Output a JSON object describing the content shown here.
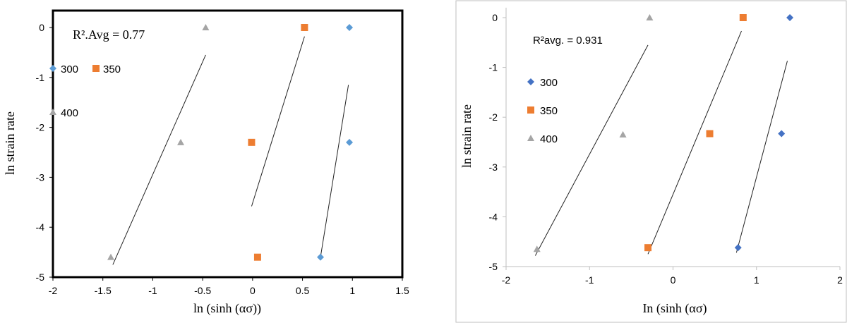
{
  "chart_data": [
    {
      "type": "scatter",
      "xlabel": "ln (sinh (ασ))",
      "ylabel": "ln strain rate",
      "xlim": [
        -2,
        1.5
      ],
      "ylim": [
        -5,
        0.5
      ],
      "xticks": [
        -2,
        -1.5,
        -1,
        -0.5,
        0,
        0.5,
        1,
        1.5
      ],
      "yticks": [
        0,
        -1,
        -2,
        -3,
        -4,
        -5
      ],
      "xtick_labels": [
        "-2",
        "-1.5",
        "-1",
        "-0.5",
        "0",
        "0.5",
        "1",
        "1.5"
      ],
      "ytick_labels": [
        "0",
        "-1",
        "-2",
        "-3",
        "-4",
        "-5"
      ],
      "annotation": "R².Avg = 0.77",
      "grid": false,
      "legend_placement": "left inside",
      "series": [
        {
          "name": "300",
          "marker": "diamond",
          "color": "#5b9bd5",
          "x": [
            0.97,
            0.97,
            0.68
          ],
          "y": [
            0,
            -2.3,
            -4.6
          ],
          "fit": {
            "x": [
              0.68,
              0.96
            ],
            "y": [
              -4.6,
              -1.15
            ]
          }
        },
        {
          "name": "350",
          "marker": "square",
          "color": "#ed7d31",
          "x": [
            0.52,
            -0.01,
            0.05
          ],
          "y": [
            0,
            -2.3,
            -4.6
          ],
          "fit": {
            "x": [
              -0.01,
              0.52
            ],
            "y": [
              -3.58,
              -0.18
            ]
          }
        },
        {
          "name": "400",
          "marker": "triangle",
          "color": "#a5a5a5",
          "x": [
            -0.47,
            -0.72,
            -1.42
          ],
          "y": [
            0,
            -2.3,
            -4.6
          ],
          "fit": {
            "x": [
              -1.4,
              -0.47
            ],
            "y": [
              -4.75,
              -0.55
            ]
          }
        }
      ]
    },
    {
      "type": "scatter",
      "xlabel": "In (sinh (ασ)",
      "ylabel": "ln strain rate",
      "xlim": [
        -2,
        2
      ],
      "ylim": [
        -5,
        0.2
      ],
      "xticks": [
        -2,
        -1,
        0,
        1,
        2
      ],
      "yticks": [
        0,
        -1,
        -2,
        -3,
        -4,
        -5
      ],
      "xtick_labels": [
        "-2",
        "-1",
        "0",
        "1",
        "2"
      ],
      "ytick_labels": [
        "0",
        "-1",
        "-2",
        "-3",
        "-4",
        "-5"
      ],
      "annotation": "R²avg. = 0.931",
      "grid": false,
      "legend_placement": "left inside",
      "series": [
        {
          "name": "300",
          "marker": "diamond",
          "color": "#4472c4",
          "x": [
            1.4,
            1.3,
            0.78
          ],
          "y": [
            0,
            -2.33,
            -4.62
          ],
          "fit": {
            "x": [
              0.76,
              1.37
            ],
            "y": [
              -4.72,
              -0.87
            ]
          }
        },
        {
          "name": "350",
          "marker": "square",
          "color": "#ed7d31",
          "x": [
            0.84,
            0.44,
            -0.3
          ],
          "y": [
            0,
            -2.33,
            -4.62
          ],
          "fit": {
            "x": [
              -0.3,
              0.82
            ],
            "y": [
              -4.75,
              -0.27
            ]
          }
        },
        {
          "name": "400",
          "marker": "triangle",
          "color": "#a5a5a5",
          "x": [
            -0.28,
            -0.6,
            -1.63
          ],
          "y": [
            0,
            -2.35,
            -4.65
          ],
          "fit": {
            "x": [
              -1.65,
              -0.3
            ],
            "y": [
              -4.78,
              -0.55
            ]
          }
        }
      ]
    }
  ]
}
